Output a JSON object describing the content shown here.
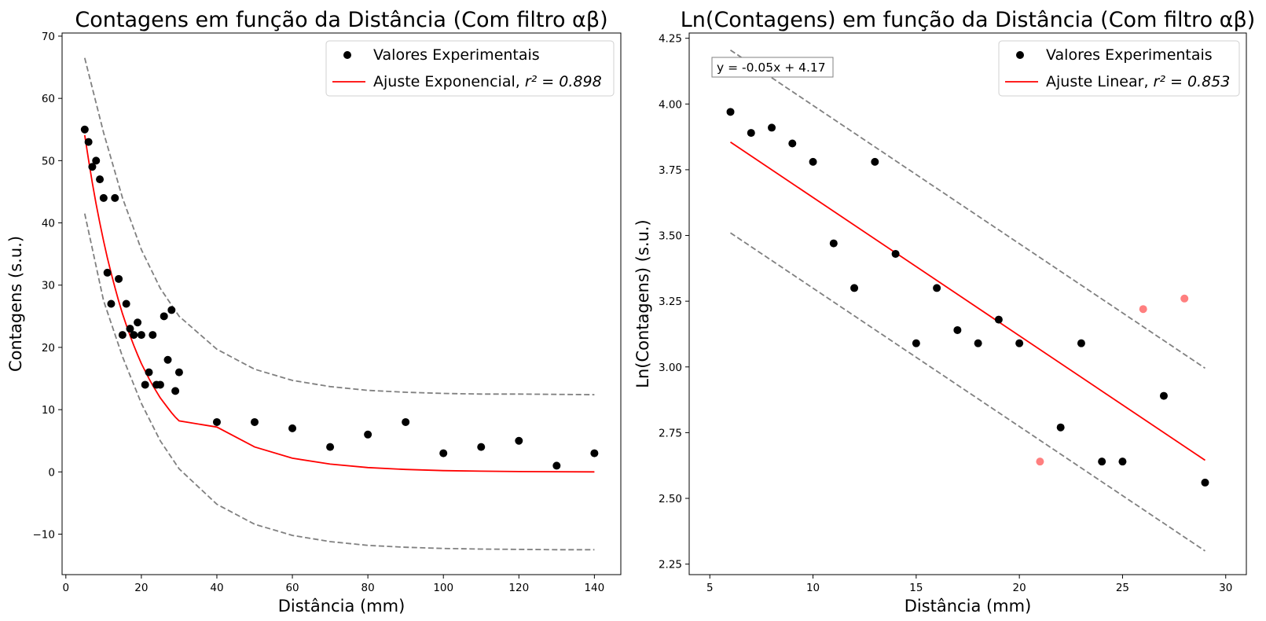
{
  "chart_data": [
    {
      "type": "scatter",
      "title": "Contagens em função da Distância (Com filtro αβ)",
      "xlabel": "Distância (mm)",
      "ylabel": "Contagens (s.u.)",
      "xlim": [
        -1,
        147
      ],
      "ylim": [
        -16.5,
        70.5
      ],
      "xticks": [
        0,
        20,
        40,
        60,
        80,
        100,
        120,
        140
      ],
      "yticks": [
        -10,
        0,
        10,
        20,
        30,
        40,
        50,
        60,
        70
      ],
      "ytick_labels": [
        "−10",
        "0",
        "10",
        "20",
        "30",
        "40",
        "50",
        "60",
        "70"
      ],
      "grid": false,
      "legend_position": "top-right",
      "legend": [
        {
          "label": "Valores Experimentais",
          "kind": "marker",
          "color": "#000000"
        },
        {
          "label": "Ajuste Exponencial, ",
          "math_label": "r² = 0.898",
          "kind": "line",
          "color": "#ff0000"
        }
      ],
      "series": [
        {
          "name": "Valores Experimentais",
          "kind": "scatter",
          "color": "#000000",
          "x": [
            5,
            6,
            7,
            8,
            9,
            10,
            11,
            12,
            13,
            14,
            15,
            16,
            17,
            18,
            19,
            20,
            21,
            22,
            23,
            24,
            25,
            26,
            27,
            28,
            29,
            30,
            40,
            50,
            60,
            70,
            80,
            90,
            100,
            110,
            120,
            130,
            140
          ],
          "y": [
            55,
            53,
            49,
            50,
            47,
            44,
            32,
            27,
            44,
            31,
            22,
            27,
            23,
            22,
            24,
            22,
            14,
            16,
            22,
            14,
            14,
            25,
            18,
            26,
            13,
            16,
            8,
            8,
            7,
            4,
            6,
            8,
            3,
            4,
            5,
            1,
            3
          ]
        },
        {
          "name": "Ajuste Exponencial",
          "kind": "line",
          "color": "#ff0000",
          "x": [
            5,
            6,
            7,
            8,
            9,
            10,
            11,
            12,
            13,
            14,
            15,
            16,
            17,
            18,
            19,
            20,
            21,
            22,
            23,
            24,
            25,
            26,
            27,
            28,
            29,
            30,
            40,
            50,
            60,
            70,
            80,
            90,
            100,
            110,
            120,
            130,
            140
          ],
          "y": [
            54.1,
            50.2,
            46.5,
            43.1,
            40.0,
            37.1,
            34.4,
            31.9,
            29.6,
            27.4,
            25.4,
            23.6,
            21.9,
            20.3,
            18.8,
            17.4,
            16.2,
            15.0,
            13.9,
            12.9,
            11.9,
            11.1,
            10.3,
            9.5,
            8.8,
            8.2,
            7.2,
            4.0,
            2.2,
            1.25,
            0.7,
            0.4,
            0.2,
            0.12,
            0.06,
            0.03,
            0.0
          ]
        },
        {
          "name": "upper bound",
          "kind": "dashed",
          "color": "#808080",
          "x": [
            5,
            10,
            15,
            20,
            25,
            30,
            40,
            50,
            60,
            70,
            80,
            90,
            100,
            110,
            120,
            130,
            140
          ],
          "y": [
            66.5,
            54.5,
            44.0,
            35.7,
            29.5,
            25.0,
            19.7,
            16.5,
            14.7,
            13.7,
            13.1,
            12.8,
            12.6,
            12.5,
            12.5,
            12.45,
            12.4
          ]
        },
        {
          "name": "lower bound",
          "kind": "dashed",
          "color": "#808080",
          "x": [
            5,
            10,
            15,
            20,
            25,
            30,
            40,
            50,
            60,
            70,
            80,
            90,
            100,
            110,
            120,
            130,
            140
          ],
          "y": [
            41.5,
            27.5,
            18.5,
            11.0,
            5.0,
            0.5,
            -5.2,
            -8.4,
            -10.2,
            -11.2,
            -11.8,
            -12.1,
            -12.3,
            -12.4,
            -12.45,
            -12.5,
            -12.5
          ]
        }
      ]
    },
    {
      "type": "scatter",
      "title": "Ln(Contagens) em função da Distância (Com filtro αβ)",
      "xlabel": "Distância (mm)",
      "ylabel": "Ln(Contagens) (s.u.)",
      "xlim": [
        4,
        31
      ],
      "ylim": [
        2.21,
        4.27
      ],
      "xticks": [
        5,
        10,
        15,
        20,
        25,
        30
      ],
      "yticks": [
        2.25,
        2.5,
        2.75,
        3.0,
        3.25,
        3.5,
        3.75,
        4.0,
        4.25
      ],
      "ytick_labels": [
        "2.25",
        "2.50",
        "2.75",
        "3.00",
        "3.25",
        "3.50",
        "3.75",
        "4.00",
        "4.25"
      ],
      "grid": false,
      "legend_position": "top-right",
      "annotation": "y = -0.05x + 4.17",
      "legend": [
        {
          "label": "Valores Experimentais",
          "kind": "marker",
          "color": "#000000"
        },
        {
          "label": "Ajuste Linear, ",
          "math_label": "r² = 0.853",
          "kind": "line",
          "color": "#ff0000"
        }
      ],
      "series": [
        {
          "name": "Valores Experimentais",
          "kind": "scatter",
          "color": "#000000",
          "x": [
            6,
            7,
            8,
            9,
            10,
            11,
            12,
            13,
            14,
            15,
            16,
            17,
            18,
            19,
            20,
            22,
            23,
            24,
            25,
            27,
            29
          ],
          "y": [
            3.97,
            3.89,
            3.91,
            3.85,
            3.78,
            3.47,
            3.3,
            3.78,
            3.43,
            3.09,
            3.3,
            3.14,
            3.09,
            3.18,
            3.09,
            2.77,
            3.09,
            2.64,
            2.64,
            2.89,
            2.56
          ]
        },
        {
          "name": "outliers",
          "kind": "scatter",
          "color": "#ff0000",
          "opacity": 0.5,
          "x": [
            21,
            26,
            28
          ],
          "y": [
            2.64,
            3.22,
            3.26
          ]
        },
        {
          "name": "Ajuste Linear",
          "kind": "line",
          "color": "#ff0000",
          "x": [
            6,
            29
          ],
          "y": [
            3.855,
            2.645
          ]
        },
        {
          "name": "upper bound",
          "kind": "dashed",
          "color": "#808080",
          "x": [
            6,
            29
          ],
          "y": [
            4.205,
            2.995
          ]
        },
        {
          "name": "lower bound",
          "kind": "dashed",
          "color": "#808080",
          "x": [
            6,
            29
          ],
          "y": [
            3.51,
            2.3
          ]
        }
      ]
    }
  ]
}
